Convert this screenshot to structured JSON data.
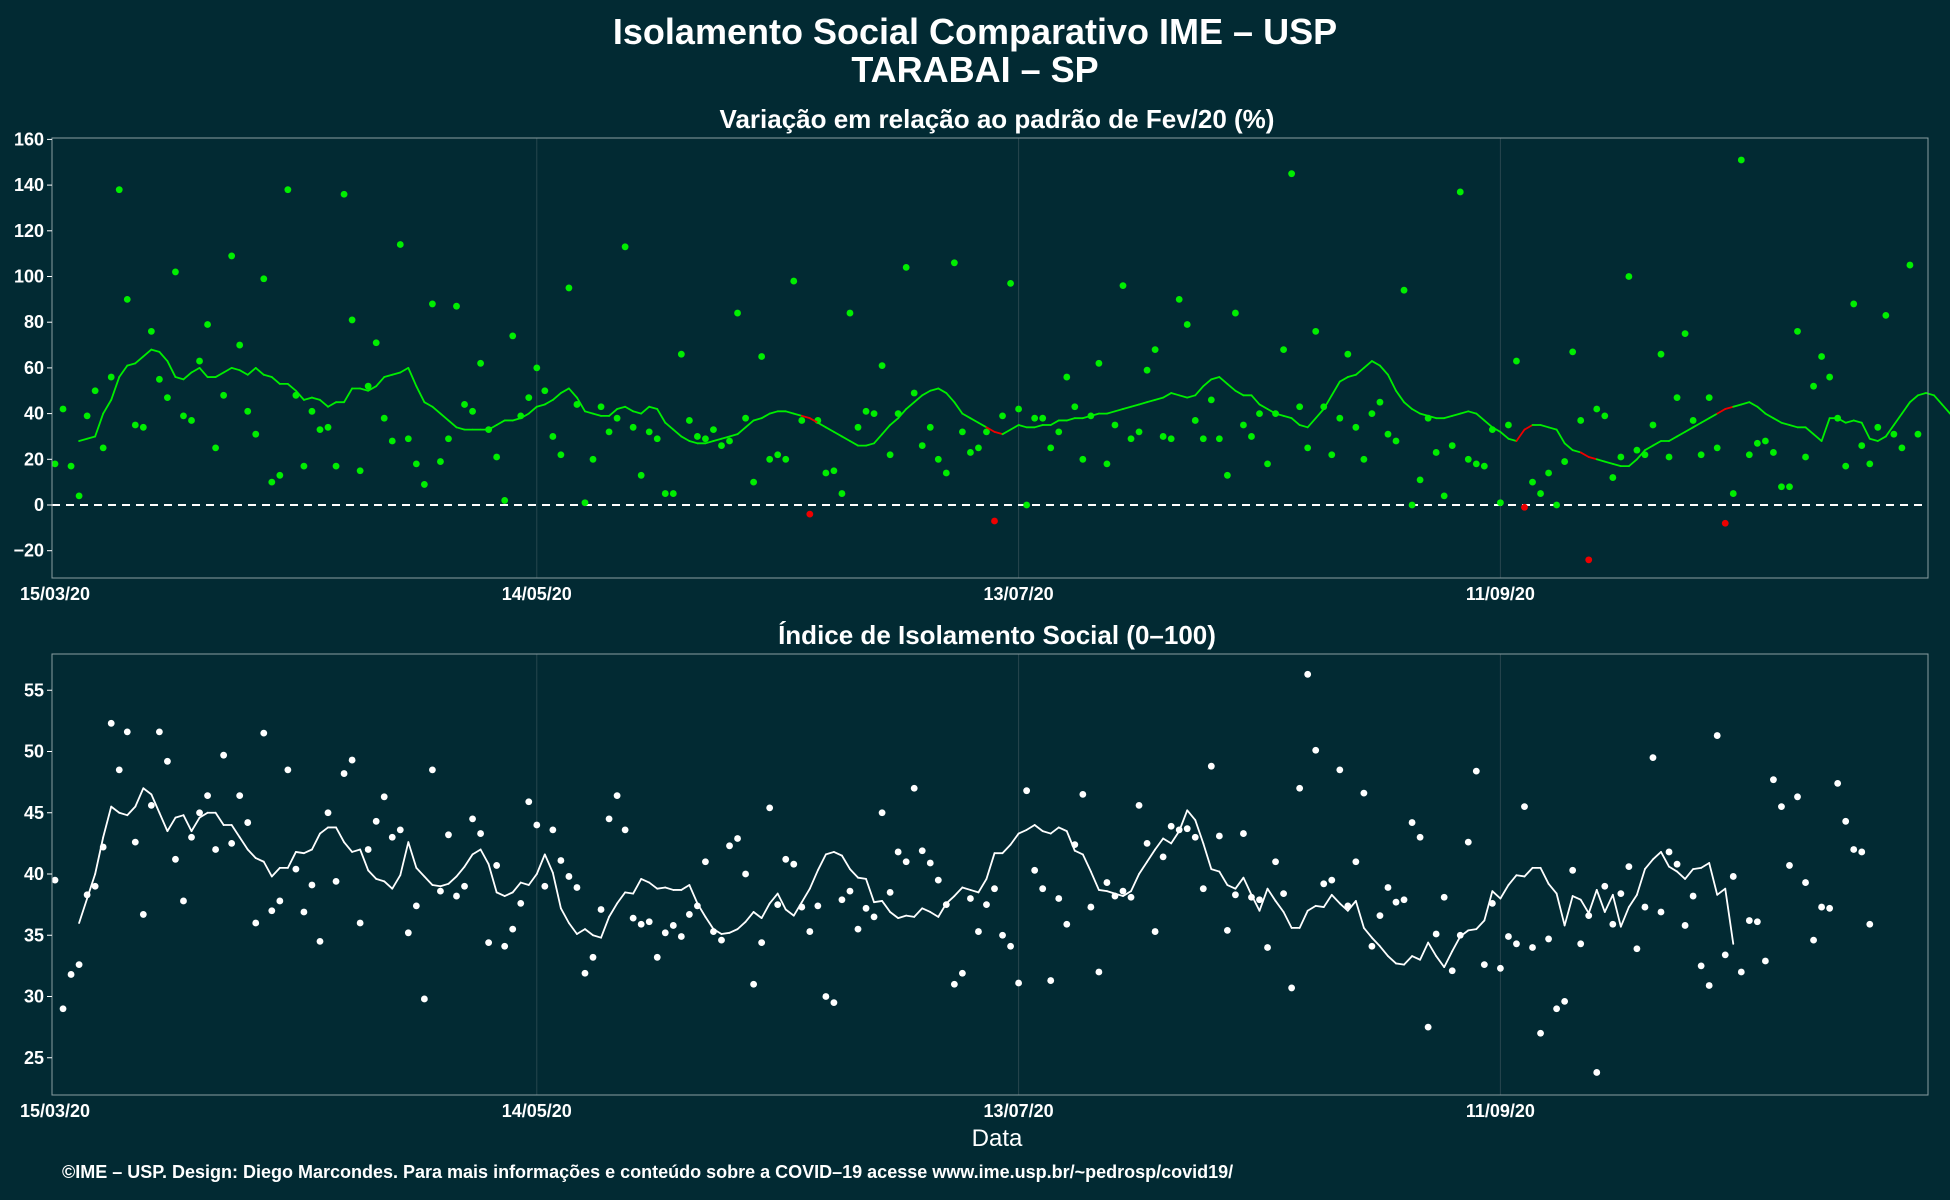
{
  "title_line1": "Isolamento Social Comparativo IME – USP",
  "title_line2": "TARABAI – SP",
  "footer": "©IME – USP. Design: Diego Marcondes. Para mais informações e conteúdo sobre a COVID–19 acesse www.ime.usp.br/~pedrosp/covid19/",
  "colors": {
    "background": "#022a33",
    "positive": "#00ee00",
    "negative": "#ee0000",
    "index": "#ffffff",
    "grid": "#28464e",
    "frame": "#8a9ea2"
  },
  "chart_data": [
    {
      "type": "scatter",
      "title": "Variação em relação ao padrão de Fev/20 (%)",
      "xlabel": "",
      "ylabel": "",
      "x_start": "15/03/20",
      "x_end_day": 192,
      "x_tick_days": [
        0,
        60,
        120,
        180
      ],
      "x_tick_labels": [
        "15/03/20",
        "14/05/20",
        "13/07/20",
        "11/09/20"
      ],
      "ylim": [
        -30,
        160
      ],
      "y_ticks": [
        -20,
        0,
        20,
        40,
        60,
        80,
        100,
        120,
        140,
        160
      ],
      "y_tick_labels": [
        "−20",
        "0",
        "20",
        "40",
        "60",
        "80",
        "100",
        "120",
        "140",
        "160"
      ],
      "reference_line": 0,
      "point_color_rule": "green if value >= 0, red if value < 0",
      "series": [
        {
          "values": [
            18,
            42,
            17,
            4,
            39,
            50,
            25,
            56,
            138,
            90,
            35,
            34,
            76,
            55,
            47,
            102,
            39,
            37,
            63,
            79,
            25,
            48,
            109,
            70,
            41,
            31,
            99,
            10,
            13,
            138,
            48,
            17,
            41,
            33,
            34,
            17,
            136,
            81,
            15,
            52,
            71,
            38,
            28,
            114,
            29,
            18,
            9,
            88,
            19,
            29,
            87,
            44,
            41,
            62,
            33,
            21,
            2,
            74,
            39,
            47,
            60,
            50,
            30,
            22,
            95,
            44,
            1,
            20,
            43,
            32,
            38,
            113,
            34,
            13,
            32,
            29,
            5,
            5,
            66,
            37,
            30,
            29,
            33,
            26,
            28,
            84,
            38,
            10,
            65,
            20,
            22,
            20,
            98,
            37,
            -4,
            37,
            14,
            15,
            5,
            84,
            34,
            41,
            40,
            61,
            22,
            40,
            104,
            49,
            26,
            34,
            20,
            14,
            106,
            32,
            23,
            25,
            32,
            -7,
            39,
            97,
            42,
            0,
            38,
            38,
            25,
            32,
            56,
            43,
            20,
            39,
            62,
            18,
            35,
            96,
            29,
            32,
            59,
            68,
            30,
            29,
            90,
            79,
            37,
            29,
            46,
            29,
            13,
            84,
            35,
            30,
            40,
            18,
            40,
            68,
            145,
            43,
            25,
            76,
            43,
            22,
            38,
            66,
            34,
            20,
            40,
            45,
            31,
            28,
            94,
            0,
            11,
            38,
            23,
            4,
            26,
            137,
            20,
            18,
            17,
            33,
            1,
            35,
            63,
            -1,
            10,
            5,
            14,
            0,
            19,
            67,
            37,
            -24,
            42,
            39,
            12,
            21,
            100,
            24,
            22,
            35,
            66,
            21,
            47,
            75,
            37,
            22,
            47,
            25,
            -8,
            5,
            151,
            22,
            27,
            28,
            23,
            8,
            8,
            76,
            21,
            52,
            65,
            56,
            38,
            17,
            88,
            26,
            18,
            34,
            83,
            31,
            25,
            105,
            31
          ]
        },
        {
          "values": [
            28,
            29,
            30,
            40,
            46,
            56,
            61,
            62,
            65,
            68,
            67,
            63,
            56,
            55,
            58,
            60,
            56,
            56,
            58,
            60,
            59,
            57,
            60,
            57,
            56,
            53,
            53,
            50,
            46,
            47,
            46,
            43,
            45,
            45,
            51,
            51,
            50,
            52,
            56,
            57,
            58,
            60,
            52,
            45,
            43,
            40,
            37,
            34,
            33,
            33,
            33,
            33,
            35,
            37,
            37,
            38,
            40,
            43,
            44,
            46,
            49,
            51,
            47,
            41,
            40,
            39,
            39,
            42,
            43,
            41,
            40,
            43,
            42,
            36,
            33,
            30,
            28,
            27,
            27,
            28,
            29,
            30,
            31,
            34,
            37,
            38,
            40,
            41,
            41,
            40,
            39,
            38,
            36,
            34,
            32,
            30,
            28,
            26,
            26,
            27,
            31,
            35,
            38,
            42,
            45,
            48,
            50,
            51,
            49,
            45,
            40,
            38,
            36,
            34,
            32,
            31,
            33,
            35,
            34,
            34,
            35,
            35,
            37,
            37,
            38,
            38,
            39,
            40,
            40,
            41,
            42,
            43,
            44,
            45,
            46,
            47,
            49,
            48,
            47,
            48,
            52,
            55,
            56,
            53,
            50,
            48,
            48,
            44,
            42,
            40,
            39,
            38,
            35,
            34,
            38,
            42,
            48,
            54,
            56,
            57,
            60,
            63,
            61,
            57,
            50,
            45,
            42,
            40,
            39,
            38,
            38,
            39,
            40,
            41,
            40,
            37,
            34,
            32,
            29,
            28,
            33,
            35,
            35,
            34,
            33,
            27,
            24,
            23,
            21,
            20,
            19,
            18,
            17,
            17,
            20,
            24,
            26,
            28,
            28,
            30,
            32,
            34,
            36,
            38,
            40,
            42,
            43,
            44,
            45,
            43,
            40,
            38,
            36,
            35,
            34,
            34,
            31,
            28,
            38,
            38,
            36,
            37,
            36,
            29,
            28,
            30,
            35,
            40,
            45,
            48,
            49,
            48,
            44,
            40,
            42,
            44,
            45,
            46,
            47
          ]
        }
      ]
    },
    {
      "type": "scatter",
      "title": "Índice de Isolamento Social (0–100)",
      "xlabel": "Data",
      "ylabel": "",
      "x_start": "15/03/20",
      "x_end_day": 192,
      "x_tick_days": [
        0,
        60,
        120,
        180
      ],
      "x_tick_labels": [
        "15/03/20",
        "14/05/20",
        "13/07/20",
        "11/09/20"
      ],
      "ylim": [
        22,
        58
      ],
      "y_ticks": [
        25,
        30,
        35,
        40,
        45,
        50,
        55
      ],
      "y_tick_labels": [
        "25",
        "30",
        "35",
        "40",
        "45",
        "50",
        "55"
      ],
      "series": [
        {
          "values": [
            39.5,
            29,
            31.8,
            32.6,
            38.3,
            39,
            42.2,
            52.3,
            48.5,
            51.6,
            42.6,
            36.7,
            45.6,
            51.6,
            49.2,
            41.2,
            37.8,
            43,
            45,
            46.4,
            42,
            49.7,
            42.5,
            46.4,
            44.2,
            36,
            51.5,
            37,
            37.8,
            48.5,
            40.4,
            36.9,
            39.1,
            34.5,
            45,
            39.4,
            48.2,
            49.3,
            36,
            42,
            44.3,
            46.3,
            43,
            43.6,
            35.2,
            37.4,
            29.8,
            48.5,
            38.6,
            43.2,
            38.2,
            39,
            44.5,
            43.3,
            34.4,
            40.7,
            34.1,
            35.5,
            37.6,
            45.9,
            44,
            39,
            43.6,
            41.1,
            39.8,
            38.9,
            31.9,
            33.2,
            37.1,
            44.5,
            46.4,
            43.6,
            36.4,
            35.9,
            36.1,
            33.2,
            35.2,
            35.8,
            34.9,
            36.7,
            37.4,
            41,
            35.3,
            34.6,
            42.3,
            42.9,
            40,
            31,
            34.4,
            45.4,
            37.5,
            41.2,
            40.8,
            37.3,
            35.3,
            37.4,
            30,
            29.5,
            37.9,
            38.6,
            35.5,
            37.2,
            36.5,
            45,
            38.5,
            41.8,
            41,
            47,
            41.9,
            40.9,
            39.5,
            37.5,
            31,
            31.9,
            38,
            35.3,
            37.5,
            38.8,
            35,
            34.1,
            31.1,
            46.8,
            40.3,
            38.8,
            31.3,
            38,
            35.9,
            42.4,
            46.5,
            37.3,
            32,
            39.3,
            38.2,
            38.6,
            38.1,
            45.6,
            42.5,
            35.3,
            41.4,
            43.9,
            43.6,
            43.7,
            43,
            38.8,
            48.8,
            43.1,
            35.4,
            38.3,
            43.3,
            38.1,
            37.9,
            34,
            41,
            38.4,
            30.7,
            47,
            56.3,
            50.1,
            39.2,
            39.5,
            48.5,
            37.4,
            41,
            46.6,
            34.1,
            36.6,
            38.9,
            37.7,
            37.9,
            44.2,
            43,
            27.5,
            35.1,
            38.1,
            32.1,
            35,
            42.6,
            48.4,
            32.6,
            37.6,
            32.3,
            34.9,
            34.3,
            45.5,
            34,
            27,
            34.7,
            29,
            29.6,
            40.3,
            34.3,
            36.6,
            23.8,
            39,
            35.9,
            38.4,
            40.6,
            33.9,
            37.3,
            49.5,
            36.9,
            41.8,
            40.8,
            35.8,
            38.2,
            32.5,
            30.9,
            51.3,
            33.4,
            39.8,
            32,
            36.2,
            36.1,
            32.9,
            47.7,
            45.5,
            40.7,
            46.3,
            39.3,
            34.6,
            37.3,
            37.2,
            47.4,
            44.3,
            42,
            41.8,
            35.9
          ]
        },
        {
          "values": [
            36,
            38,
            40,
            43,
            45.5,
            45,
            44.8,
            45.5,
            47,
            46.5,
            45,
            43.5,
            44.6,
            44.8,
            43.5,
            44.6,
            45,
            45,
            44,
            44,
            43,
            42,
            41.3,
            41,
            39.8,
            40.5,
            40.5,
            41.8,
            41.7,
            42,
            43.3,
            43.8,
            43.8,
            42.6,
            41.8,
            42,
            40.3,
            39.6,
            39.4,
            38.8,
            39.9,
            42.6,
            40.5,
            39.8,
            39.1,
            39,
            39.2,
            39.8,
            40.6,
            41.6,
            42,
            40.8,
            38.5,
            38.2,
            38.5,
            39.3,
            39.1,
            40,
            41.6,
            40.1,
            37.2,
            36,
            35.1,
            35.5,
            35,
            34.8,
            36.5,
            37.6,
            38.5,
            38.4,
            39.6,
            39.3,
            38.8,
            38.9,
            38.7,
            38.7,
            39.1,
            37.6,
            36.5,
            35.5,
            35.1,
            35.2,
            35.5,
            36.1,
            36.9,
            36.4,
            37.6,
            38.4,
            37.1,
            36.6,
            37.7,
            38.8,
            40.3,
            41.6,
            41.8,
            41.5,
            40.4,
            39.7,
            39.6,
            37.7,
            37.8,
            36.9,
            36.4,
            36.6,
            36.5,
            37.2,
            36.9,
            36.5,
            37.6,
            38.2,
            38.9,
            38.7,
            38.5,
            39.6,
            41.7,
            41.7,
            42.4,
            43.3,
            43.6,
            44,
            43.5,
            43.3,
            43.8,
            43.5,
            41.9,
            41.6,
            40.2,
            38.7,
            38.6,
            38.4,
            38.2,
            38.6,
            40,
            41,
            42,
            42.9,
            42.5,
            43.5,
            45.2,
            44.4,
            42.5,
            40.4,
            40.2,
            39.1,
            38.8,
            39.7,
            38.3,
            37,
            38.8,
            37.8,
            36.9,
            35.6,
            35.6,
            37,
            37.4,
            37.3,
            38.3,
            37.6,
            37,
            37.8,
            35.6,
            34.8,
            34.1,
            33.3,
            32.7,
            32.6,
            33.3,
            33,
            34.4,
            33.3,
            32.4,
            33.7,
            34.9,
            35.4,
            35.5,
            36.2,
            38.6,
            38,
            39.1,
            39.9,
            39.8,
            40.5,
            40.5,
            39.2,
            38.4,
            35.8,
            38.2,
            37.9,
            36.8,
            38.7,
            36.9,
            38.3,
            35.7,
            37.3,
            38.3,
            40.4,
            41.2,
            41.8,
            40.6,
            40.2,
            39.6,
            40.4,
            40.5,
            40.9,
            38.3,
            38.8,
            34.3
          ]
        }
      ]
    }
  ]
}
